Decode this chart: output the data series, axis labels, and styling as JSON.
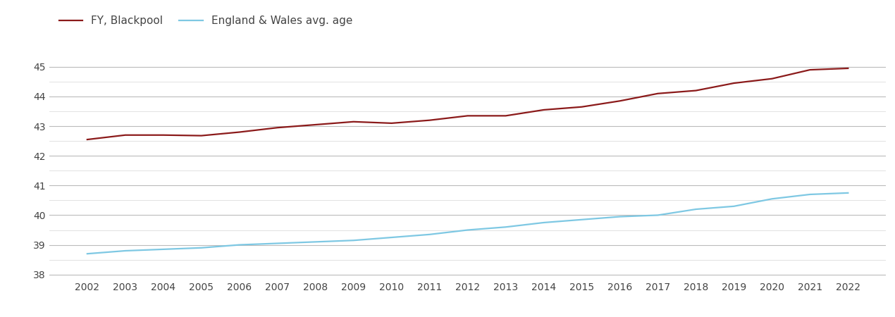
{
  "years": [
    2002,
    2003,
    2004,
    2005,
    2006,
    2007,
    2008,
    2009,
    2010,
    2011,
    2012,
    2013,
    2014,
    2015,
    2016,
    2017,
    2018,
    2019,
    2020,
    2021,
    2022
  ],
  "blackpool": [
    42.55,
    42.7,
    42.7,
    42.68,
    42.8,
    42.95,
    43.05,
    43.15,
    43.1,
    43.2,
    43.35,
    43.35,
    43.55,
    43.65,
    43.85,
    44.1,
    44.2,
    44.45,
    44.6,
    44.9,
    44.95
  ],
  "england_wales": [
    38.7,
    38.8,
    38.85,
    38.9,
    39.0,
    39.05,
    39.1,
    39.15,
    39.25,
    39.35,
    39.5,
    39.6,
    39.75,
    39.85,
    39.95,
    40.0,
    40.2,
    40.3,
    40.55,
    40.7,
    40.75
  ],
  "blackpool_color": "#8B1A1A",
  "england_wales_color": "#7EC8E3",
  "blackpool_label": "FY, Blackpool",
  "england_wales_label": "England & Wales avg. age",
  "ylim": [
    37.85,
    45.65
  ],
  "yticks": [
    38,
    39,
    40,
    41,
    42,
    43,
    44,
    45
  ],
  "minor_yticks": [
    38.5,
    39.5,
    40.5,
    41.5,
    42.5,
    43.5,
    44.5
  ],
  "background_color": "#ffffff",
  "major_grid_color": "#bbbbbb",
  "minor_grid_color": "#dddddd",
  "line_width": 1.6,
  "legend_fontsize": 11,
  "tick_fontsize": 10,
  "tick_color": "#444444"
}
